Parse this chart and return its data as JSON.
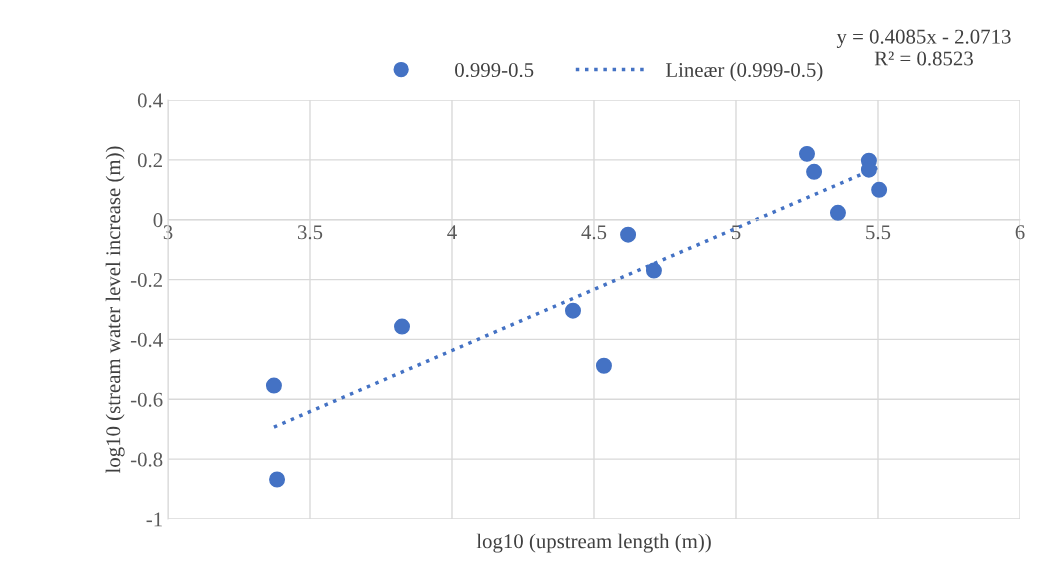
{
  "chart_data": {
    "type": "scatter",
    "xlabel": "log10 (upstream length (m))",
    "ylabel": "log10 (stream water level increase (m))",
    "xlim": [
      3,
      6
    ],
    "xticks": [
      3,
      3.5,
      4,
      4.5,
      5,
      5.5,
      6
    ],
    "ylim": [
      -1,
      0.4
    ],
    "yticks": [
      -1,
      -0.8,
      -0.6,
      -0.4,
      -0.2,
      0,
      0.2,
      0.4
    ],
    "grid": true,
    "legend": "top",
    "marker": "circle",
    "annotations": [
      "y = 0.4085x - 2.0713\nR² = 0.8523"
    ],
    "series": [
      {
        "name": "0.999-0.5",
        "color": "#4472c4",
        "x": [
          3.373,
          3.384,
          3.824,
          4.426,
          4.535,
          4.62,
          4.711,
          5.25,
          5.275,
          5.359,
          5.468,
          5.468,
          5.504
        ],
        "values": [
          -0.554,
          -0.868,
          -0.357,
          -0.304,
          -0.488,
          -0.05,
          -0.17,
          0.22,
          0.16,
          0.023,
          0.197,
          0.167,
          0.1
        ]
      },
      {
        "name": "Lineær (0.999-0.5)",
        "type": "line",
        "line_style": "dotted",
        "marker": "none",
        "color": "#4472c4",
        "x": [
          3.373,
          5.504
        ],
        "values": [
          -0.693,
          0.177
        ]
      }
    ]
  }
}
